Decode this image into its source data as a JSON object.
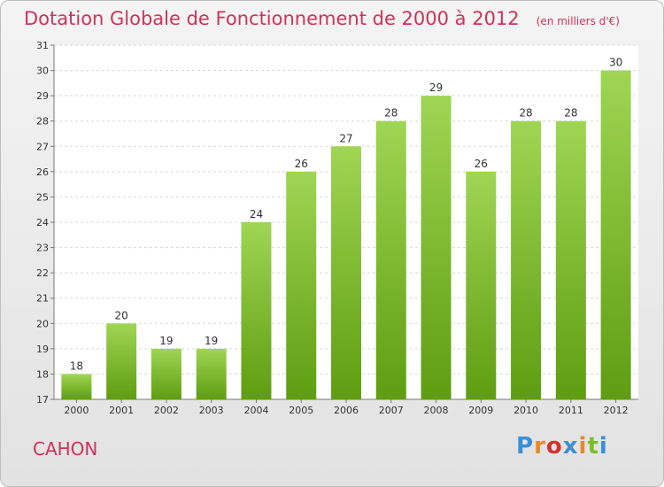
{
  "header": {
    "title": "Dotation Globale de Fonctionnement de 2000 à 2012",
    "unit": "(en milliers d'€)"
  },
  "commune": "CAHON",
  "logo": {
    "letters": [
      "P",
      "r",
      "o",
      "x",
      "i",
      "t",
      "i"
    ],
    "colors": [
      "#3a8fd8",
      "#e8892a",
      "#d63030",
      "#3a8fd8",
      "#e8892a",
      "#7bbf2a",
      "#3a8fd8"
    ]
  },
  "colors": {
    "bar_top": "#9fd654",
    "bar_bottom": "#5e9d10",
    "title": "#d0315a"
  },
  "chart_data": {
    "type": "bar",
    "title": "Dotation Globale de Fonctionnement de 2000 à 2012",
    "categories": [
      "2000",
      "2001",
      "2002",
      "2003",
      "2004",
      "2005",
      "2006",
      "2007",
      "2008",
      "2009",
      "2010",
      "2011",
      "2012"
    ],
    "values": [
      18,
      20,
      19,
      19,
      24,
      26,
      27,
      28,
      29,
      26,
      28,
      28,
      30
    ],
    "ylim": [
      17,
      31
    ],
    "yticks": [
      17,
      18,
      19,
      20,
      21,
      22,
      23,
      24,
      25,
      26,
      27,
      28,
      29,
      30,
      31
    ],
    "grid": true,
    "data_labels": true,
    "xlabel": "",
    "ylabel": ""
  }
}
